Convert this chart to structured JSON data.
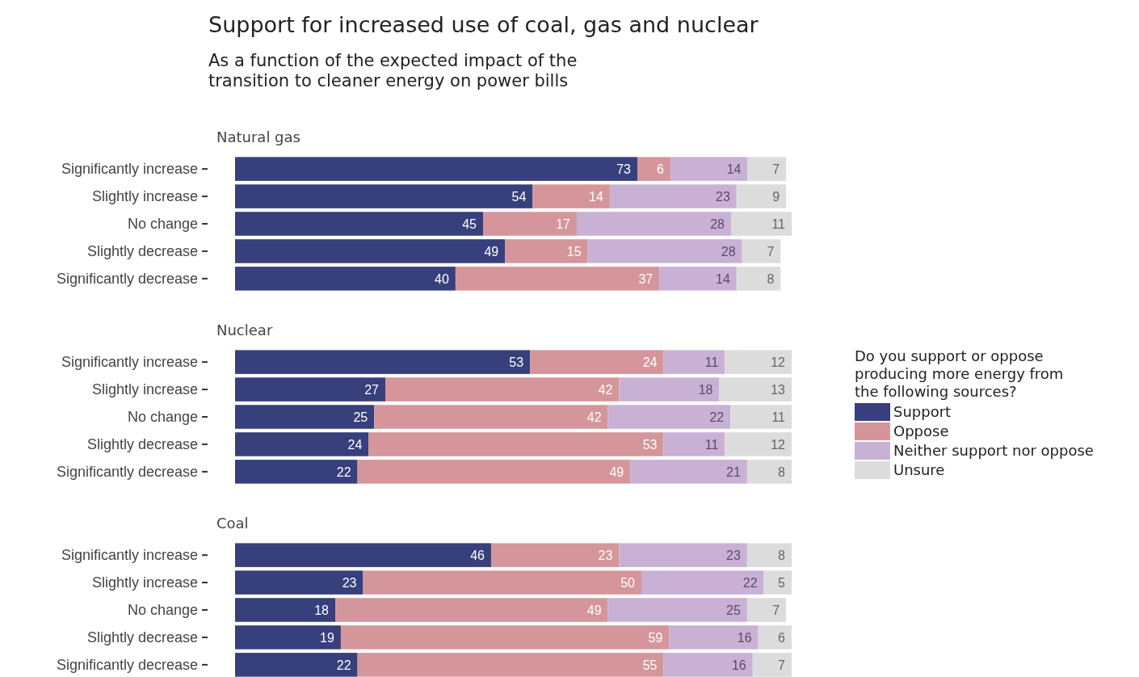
{
  "chart_data": [
    {
      "type": "bar",
      "orientation": "horizontal",
      "stacked": true,
      "data_labels": true,
      "title": "Support for increased use of coal, gas and nuclear",
      "subtitle": "As a function of the expected impact of the transition to cleaner energy on power bills",
      "annotations": [
        "Natural gas"
      ],
      "categories": [
        "Significantly increase",
        "Slightly increase",
        "No change",
        "Slightly decrease",
        "Significantly decrease"
      ],
      "series": [
        {
          "color": "#373f7c",
          "values": [
            73,
            54,
            45,
            49,
            40
          ]
        },
        {
          "color": "#d4969a",
          "values": [
            6,
            14,
            17,
            15,
            37
          ]
        },
        {
          "color": "#c9b1d6",
          "values": [
            14,
            23,
            28,
            28,
            14
          ]
        },
        {
          "color": "#dcdcdc",
          "values": [
            7,
            9,
            11,
            7,
            8
          ]
        }
      ]
    },
    {
      "type": "bar",
      "orientation": "horizontal",
      "stacked": true,
      "data_labels": true,
      "annotations": [
        "Nuclear"
      ],
      "legend": "right",
      "legend_title": "Do you support or oppose producing more energy from the following sources?",
      "categories": [
        "Significantly increase",
        "Slightly increase",
        "No change",
        "Slightly decrease",
        "Significantly decrease"
      ],
      "series": [
        {
          "name": "Support",
          "color": "#373f7c",
          "values": [
            53,
            27,
            25,
            24,
            22
          ]
        },
        {
          "name": "Oppose",
          "color": "#d4969a",
          "values": [
            24,
            42,
            42,
            53,
            49
          ]
        },
        {
          "name": "Neither support nor oppose",
          "color": "#c9b1d6",
          "values": [
            11,
            18,
            22,
            11,
            21
          ]
        },
        {
          "name": "Unsure",
          "color": "#dcdcdc",
          "values": [
            12,
            13,
            11,
            12,
            8
          ]
        }
      ]
    },
    {
      "type": "bar",
      "orientation": "horizontal",
      "stacked": true,
      "data_labels": true,
      "annotations": [
        "Coal"
      ],
      "categories": [
        "Significantly increase",
        "Slightly increase",
        "No change",
        "Slightly decrease",
        "Significantly decrease"
      ],
      "series": [
        {
          "color": "#373f7c",
          "values": [
            46,
            23,
            18,
            19,
            22
          ]
        },
        {
          "color": "#d4969a",
          "values": [
            23,
            50,
            49,
            59,
            55
          ]
        },
        {
          "color": "#c9b1d6",
          "values": [
            23,
            22,
            25,
            16,
            16
          ]
        },
        {
          "color": "#dcdcdc",
          "values": [
            8,
            5,
            7,
            6,
            7
          ]
        }
      ]
    }
  ]
}
